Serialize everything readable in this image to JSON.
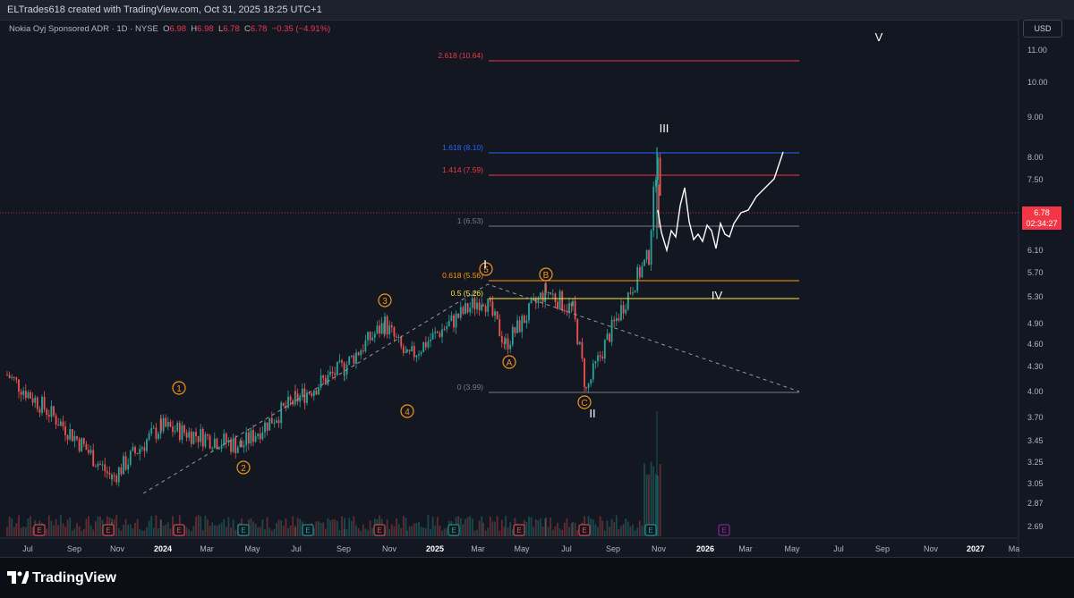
{
  "header": {
    "credit": "ELTrades618 created with TradingView.com, Oct 31, 2025 18:25 UTC+1"
  },
  "symbol": {
    "name": "Nokia Oyj Sponsored ADR · 1D · NYSE",
    "open_label": "O",
    "open": "6.98",
    "high_label": "H",
    "high": "6.98",
    "low_label": "L",
    "low": "6.78",
    "close_label": "C",
    "close": "6.78",
    "change": "−0.35 (−4.91%)"
  },
  "price_scale": {
    "currency": "USD",
    "current_price": "6.78",
    "countdown": "02:34:27",
    "ticks": [
      "11.00",
      "10.00",
      "9.00",
      "8.00",
      "7.50",
      "6.10",
      "5.70",
      "5.30",
      "4.90",
      "4.60",
      "4.30",
      "4.00",
      "3.70",
      "3.45",
      "3.25",
      "3.05",
      "2.87",
      "2.69"
    ]
  },
  "time_axis": {
    "labels": [
      "Jul",
      "Sep",
      "Nov",
      "2024",
      "Mar",
      "May",
      "Jul",
      "Sep",
      "Nov",
      "2025",
      "Mar",
      "May",
      "Jul",
      "Sep",
      "Nov",
      "2026",
      "Mar",
      "May",
      "Jul",
      "Sep",
      "Nov",
      "2027",
      "Ma"
    ]
  },
  "fib_levels": [
    {
      "label": "2.618 (10.64)",
      "color": "#f23645"
    },
    {
      "label": "1.618 (8.10)",
      "color": "#2962ff"
    },
    {
      "label": "1.414 (7.59)",
      "color": "#f23645"
    },
    {
      "label": "1 (6.53)",
      "color": "#787b86"
    },
    {
      "label": "0.618 (5.56)",
      "color": "#ff9800"
    },
    {
      "label": "0.5 (5.26)",
      "color": "#ffeb3b"
    },
    {
      "label": "0 (3.99)",
      "color": "#787b86"
    }
  ],
  "wave_labels": {
    "minor": [
      "1",
      "2",
      "3",
      "4",
      "5"
    ],
    "corrective": [
      "A",
      "B",
      "C"
    ],
    "primary": [
      "I",
      "II",
      "III",
      "IV",
      "V"
    ]
  },
  "earnings_marker": "E",
  "footer": {
    "brand": "TradingView"
  },
  "colors": {
    "background": "#131722",
    "up": "#26a69a",
    "down": "#ef5350",
    "wave_orange": "#f7931a",
    "projection": "#ffffff"
  },
  "chart_data": {
    "type": "candlestick",
    "title": "Nokia Oyj Sponsored ADR · 1D · NYSE",
    "x": [
      "2023-07",
      "2023-11",
      "2024-01",
      "2024-04",
      "2024-07",
      "2024-09",
      "2024-11",
      "2024-12",
      "2025-03",
      "2025-04",
      "2025-06",
      "2025-07",
      "2025-08",
      "2025-10-20",
      "2025-10-28",
      "2025-10-31"
    ],
    "close": [
      4.2,
      3.1,
      3.6,
      3.4,
      3.9,
      4.3,
      4.9,
      4.4,
      5.3,
      4.6,
      5.4,
      5.1,
      4.0,
      6.0,
      8.2,
      6.78
    ],
    "ylim": [
      2.6,
      11.3
    ],
    "fib_values": [
      10.64,
      8.1,
      7.59,
      6.53,
      5.56,
      5.26,
      3.99
    ],
    "projection": [
      6.6,
      6.2,
      7.3,
      6.3,
      6.5,
      6.2,
      6.6,
      7.0,
      8.2
    ]
  }
}
